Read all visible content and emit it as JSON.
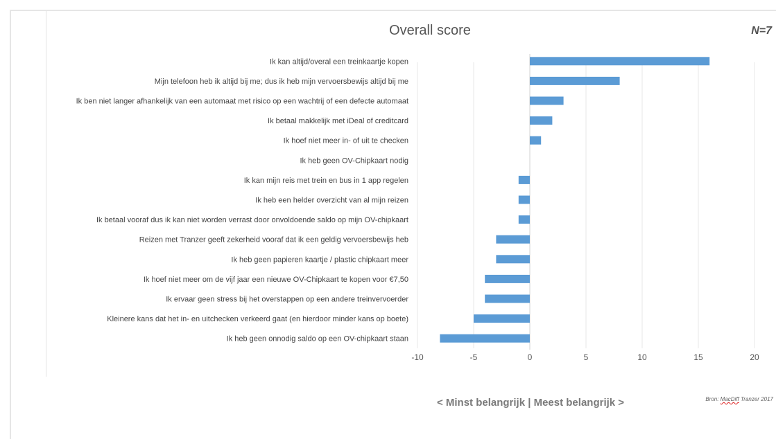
{
  "n_label": "N=7",
  "axis_caption": "< Minst belangrijk | Meest belangrijk >",
  "source": {
    "prefix": "Bron: ",
    "name": "MacDiff",
    "suffix": " Tranzer 2017"
  },
  "colors": {
    "bar": "#5b9bd5",
    "grid": "#e7e7e7",
    "axis": "#d0d0d0"
  },
  "chart_data": {
    "type": "bar",
    "orientation": "horizontal",
    "title": "Overall score",
    "xlabel": "< Minst belangrijk | Meest belangrijk >",
    "xlim": [
      -10,
      20
    ],
    "xticks": [
      -10,
      -5,
      0,
      5,
      10,
      15,
      20
    ],
    "grid": true,
    "categories": [
      "Ik kan altijd/overal een treinkaartje kopen",
      "Mijn telefoon heb ik altijd bij me; dus ik heb mijn vervoersbewijs altijd bij me",
      "Ik ben niet langer afhankelijk van een automaat met risico op een wachtrij of een defecte automaat",
      "Ik betaal makkelijk met iDeal of creditcard",
      "Ik hoef niet meer in- of uit te checken",
      "Ik heb geen OV-Chipkaart nodig",
      "Ik kan mijn reis met trein en bus in 1 app regelen",
      "Ik heb een helder overzicht van al mijn reizen",
      "Ik betaal vooraf dus ik kan niet worden verrast door onvoldoende saldo op mijn OV-chipkaart",
      "Reizen met Tranzer geeft zekerheid vooraf dat ik een geldig vervoersbewijs heb",
      "Ik heb geen papieren kaartje / plastic chipkaart meer",
      "Ik hoef niet meer om de vijf jaar een nieuwe OV-Chipkaart te kopen voor €7,50",
      "Ik ervaar geen stress bij het overstappen op een andere treinvervoerder",
      "Kleinere kans dat het in- en uitchecken verkeerd gaat (en hierdoor minder kans op boete)",
      "Ik heb geen onnodig saldo op een OV-chipkaart staan"
    ],
    "values": [
      16,
      8,
      3,
      2,
      1,
      0,
      -1,
      -1,
      -1,
      -3,
      -3,
      -4,
      -4,
      -5,
      -8
    ]
  }
}
